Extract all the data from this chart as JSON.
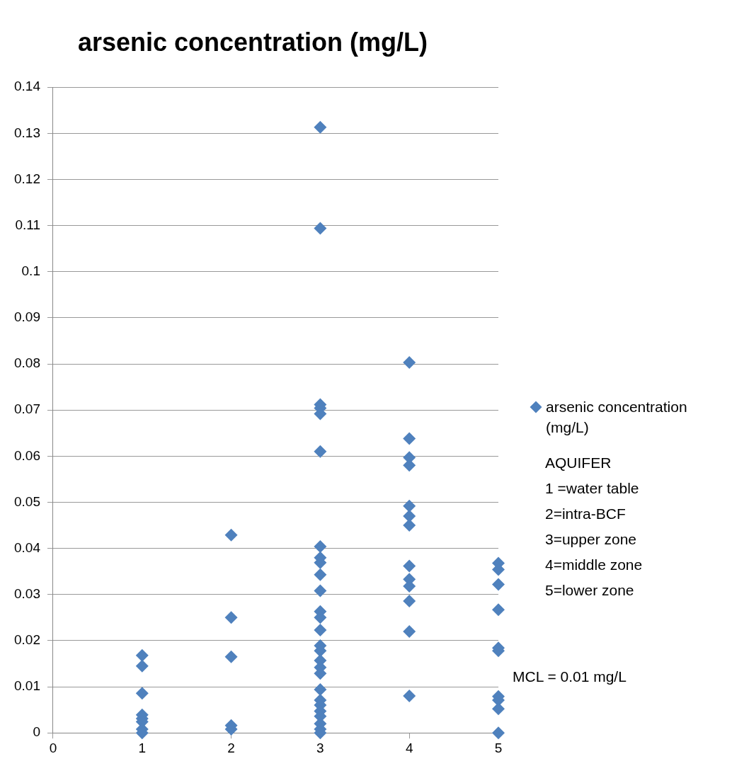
{
  "chart_data": {
    "type": "scatter",
    "title": "arsenic concentration (mg/L)",
    "x": [
      1,
      1,
      1,
      1,
      1,
      1,
      1,
      1,
      2,
      2,
      2,
      2,
      2,
      3,
      3,
      3,
      3,
      3,
      3,
      3,
      3,
      3,
      3,
      3,
      3,
      3,
      3,
      3,
      3,
      3,
      3,
      3,
      3,
      3,
      3,
      3,
      3,
      3,
      3,
      3,
      4,
      4,
      4,
      4,
      4,
      4,
      4,
      4,
      4,
      4,
      4,
      4,
      4,
      5,
      5,
      5,
      5,
      5,
      5,
      5,
      5,
      5,
      5
    ],
    "series": [
      {
        "name": "arsenic concentration (mg/L)",
        "color": "#4f81bd",
        "values": [
          0.0168,
          0.0145,
          0.0086,
          0.0039,
          0.0031,
          0.0024,
          0.0008,
          0,
          0.0429,
          0.025,
          0.0165,
          0.0016,
          0.0008,
          0.1313,
          0.1094,
          0.0712,
          0.0704,
          0.0692,
          0.061,
          0.0404,
          0.038,
          0.0369,
          0.0343,
          0.0308,
          0.0263,
          0.025,
          0.0223,
          0.0189,
          0.0178,
          0.0157,
          0.0142,
          0.0129,
          0.0094,
          0.0071,
          0.006,
          0.0047,
          0.0036,
          0.002,
          0.0008,
          0,
          0.0803,
          0.0638,
          0.0597,
          0.058,
          0.0492,
          0.047,
          0.045,
          0.0362,
          0.0333,
          0.0318,
          0.0286,
          0.022,
          0.008,
          0.0368,
          0.0354,
          0.0322,
          0.0267,
          0.0184,
          0.0178,
          0.0079,
          0.0071,
          0.0052,
          0
        ]
      }
    ],
    "xlim": [
      0,
      5
    ],
    "xticks": [
      0,
      1,
      2,
      3,
      4,
      5
    ],
    "ylim": [
      0,
      0.14
    ],
    "yticks": [
      0,
      0.01,
      0.02,
      0.03,
      0.04,
      0.05,
      0.06,
      0.07,
      0.08,
      0.09,
      0.1,
      0.11,
      0.12,
      0.13,
      0.14
    ],
    "grid": "y",
    "marker": "diamond",
    "legend": "right",
    "annotations": [
      "AQUIFER",
      "1 =water table",
      "2=intra-BCF",
      "3=upper zone",
      "4=middle zone",
      "5=lower zone",
      {
        "text": "MCL = 0.01 mg/L",
        "x": 5,
        "y": 0.01
      }
    ]
  }
}
